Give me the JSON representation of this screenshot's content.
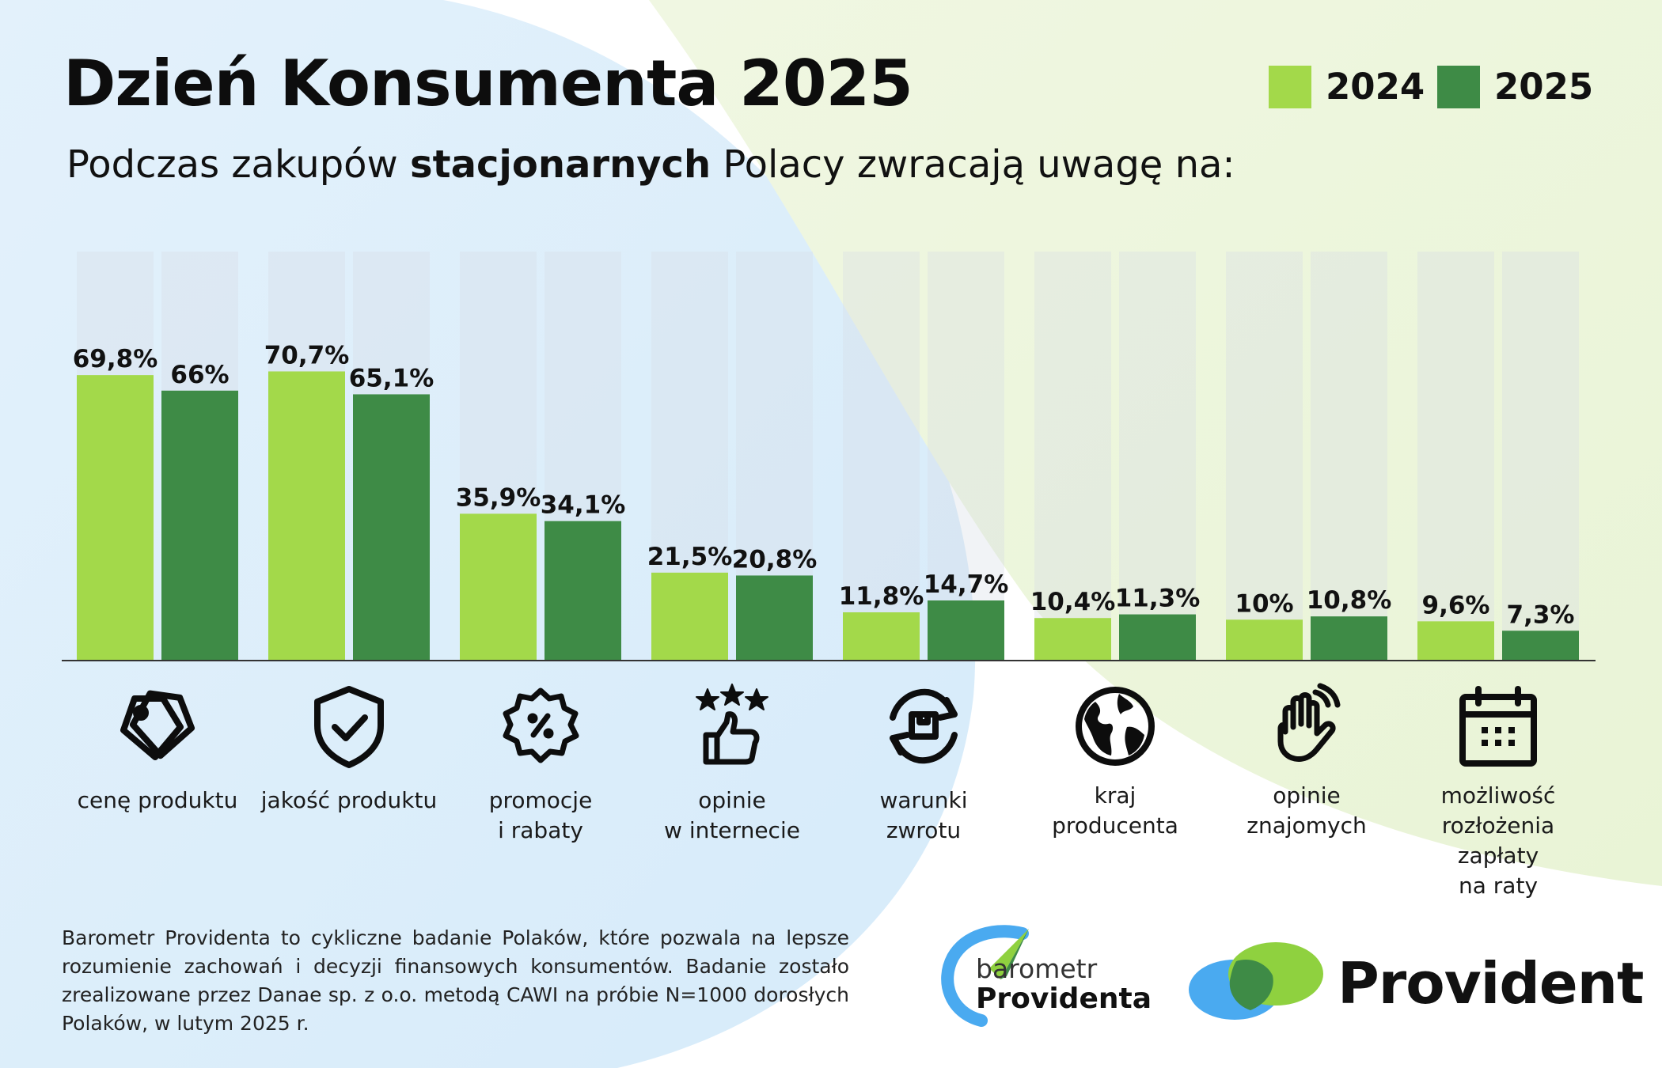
{
  "title": "Dzień Konsumenta 2025",
  "subtitle": {
    "before": "Podczas zakupów ",
    "bold": "stacjonarnych",
    "after": " Polacy zwracają uwagę na:"
  },
  "colors": {
    "series_2024": "#a3d94a",
    "series_2025": "#3e8b46",
    "track": "#d8dde4",
    "baseline": "#333333"
  },
  "chart_data": {
    "type": "bar",
    "categories": [
      "cenę produktu",
      "jakość produktu",
      "promocje\ni rabaty",
      "opinie\nw internecie",
      "warunki\nzwrotu",
      "kraj\nproducenta",
      "opinie\nznajomych",
      "możliwość\nrozłożenia zapłaty\nna raty"
    ],
    "series": [
      {
        "name": "2024",
        "values": [
          69.8,
          70.7,
          35.9,
          21.5,
          11.8,
          10.4,
          10,
          9.6
        ],
        "labels": [
          "69,8%",
          "70,7%",
          "35,9%",
          "21,5%",
          "11,8%",
          "10,4%",
          "10%",
          "9,6%"
        ]
      },
      {
        "name": "2025",
        "values": [
          66,
          65.1,
          34.1,
          20.8,
          14.7,
          11.3,
          10.8,
          7.3
        ],
        "labels": [
          "66%",
          "65,1%",
          "34,1%",
          "20,8%",
          "14,7%",
          "11,3%",
          "10,8%",
          "7,3%"
        ]
      }
    ],
    "ylim": [
      0,
      100
    ],
    "grid": false,
    "legend": "top-right"
  },
  "icons": [
    "price-tag-icon",
    "shield-check-icon",
    "discount-badge-icon",
    "thumbs-up-stars-icon",
    "return-box-icon",
    "globe-icon",
    "waving-hand-icon",
    "calendar-icon"
  ],
  "footnote": "Barometr Providenta to cykliczne badanie Polaków, które pozwala na lepsze rozumienie zachowań i decyzji finansowych konsumentów. Badanie zostało zrealizowane przez Danae sp. z o.o. metodą CAWI na próbie N=1000 dorosłych Polaków, w lutym 2025 r.",
  "logos": {
    "barometr_line1": "barometr",
    "barometr_line2": "Providenta",
    "provident": "Provident"
  }
}
